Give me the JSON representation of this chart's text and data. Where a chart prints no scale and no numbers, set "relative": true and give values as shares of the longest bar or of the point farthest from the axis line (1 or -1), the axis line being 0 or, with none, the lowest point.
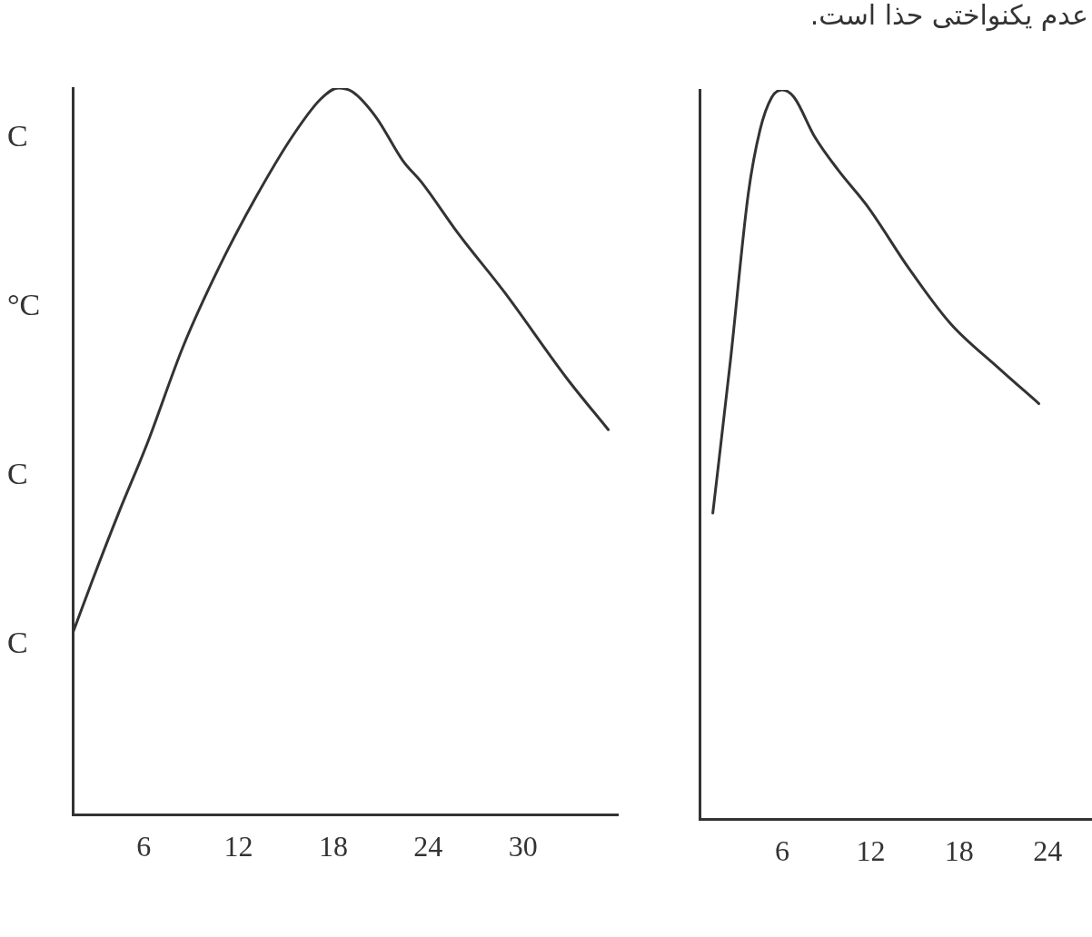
{
  "chart_data": [
    {
      "type": "line",
      "relative": true,
      "xlim": [
        1.5,
        36
      ],
      "xticks": [
        6,
        12,
        18,
        24,
        30
      ],
      "tick_labels": "x",
      "grid": false,
      "legend": false,
      "marker": "none",
      "line_style": "solid",
      "annotations": [
        "C",
        "°C",
        "C",
        "C"
      ],
      "series": [
        {
          "color": "#333333",
          "x": [
            1.5,
            2.7,
            4.4,
            6.2,
            8.5,
            10.8,
            13.1,
            15.45,
            17.2,
            18.3,
            19.2,
            20.7,
            22.4,
            23.6,
            25.9,
            28.8,
            32.8,
            35.4
          ],
          "values": [
            0.25,
            0.32,
            0.415,
            0.51,
            0.645,
            0.755,
            0.85,
            0.935,
            0.985,
            1,
            0.995,
            0.96,
            0.9,
            0.87,
            0.8,
            0.72,
            0.6,
            0.53
          ]
        }
      ]
    },
    {
      "type": "line",
      "relative": true,
      "xlim": [
        0.4,
        27
      ],
      "xticks": [
        6,
        12,
        18,
        24
      ],
      "tick_labels": "x",
      "grid": false,
      "legend": false,
      "marker": "none",
      "line_style": "solid",
      "annotations": [
        "عدم یکنواختی حذا است."
      ],
      "series": [
        {
          "color": "#333333",
          "x": [
            1.3,
            2.5,
            3.7,
            4.5,
            5.3,
            6.0,
            6.8,
            8.2,
            9.8,
            11.8,
            14.6,
            17.4,
            20.6,
            23.4
          ],
          "values": [
            0.42,
            0.63,
            0.857,
            0.945,
            0.99,
            1,
            0.99,
            0.936,
            0.89,
            0.84,
            0.755,
            0.68,
            0.62,
            0.57
          ]
        }
      ]
    }
  ]
}
